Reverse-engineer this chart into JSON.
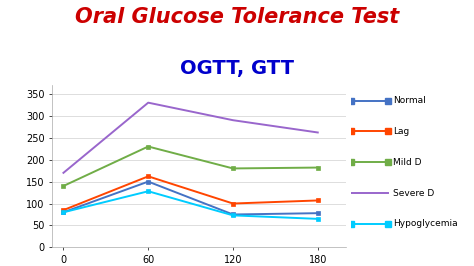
{
  "title1": "Oral Glucose Tolerance Test",
  "title2": "OGTT, GTT",
  "title1_color": "#CC0000",
  "title2_color": "#0000CC",
  "x": [
    0,
    60,
    120,
    180
  ],
  "series": {
    "Normal": {
      "values": [
        80,
        150,
        75,
        78
      ],
      "color": "#4472C4",
      "marker": "s"
    },
    "Lag": {
      "values": [
        85,
        162,
        100,
        107
      ],
      "color": "#FF4500",
      "marker": "s"
    },
    "Mild D": {
      "values": [
        140,
        230,
        180,
        182
      ],
      "color": "#70AD47",
      "marker": "s"
    },
    "Severe D": {
      "values": [
        170,
        330,
        290,
        262
      ],
      "color": "#9966CC",
      "marker": null
    },
    "Hypoglycemia": {
      "values": [
        80,
        128,
        73,
        65
      ],
      "color": "#00CCFF",
      "marker": "s"
    }
  },
  "xlim": [
    -8,
    200
  ],
  "ylim": [
    0,
    370
  ],
  "yticks": [
    0,
    50,
    100,
    150,
    200,
    250,
    300,
    350
  ],
  "xticks": [
    0,
    60,
    120,
    180
  ],
  "background_color": "#FFFFFF",
  "plot_bg": "#FFFFFF",
  "grid_color": "#CCCCCC",
  "title1_fontsize": 15,
  "title2_fontsize": 14
}
